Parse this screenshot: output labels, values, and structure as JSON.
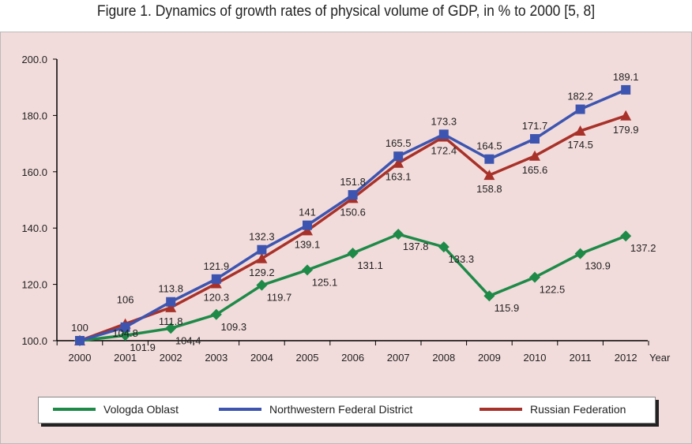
{
  "chart_data": {
    "type": "line",
    "title": "Figure 1. Dynamics of growth rates of physical volume of GDP, in % to 2000 [5, 8]",
    "xlabel": "Year",
    "ylabel": "",
    "x": [
      "2000",
      "2001",
      "2002",
      "2003",
      "2004",
      "2005",
      "2006",
      "2007",
      "2008",
      "2009",
      "2010",
      "2011",
      "2012"
    ],
    "ylim": [
      100,
      200
    ],
    "yticks": [
      "100.0",
      "120.0",
      "140.0",
      "160.0",
      "180.0",
      "200.0"
    ],
    "grid": false,
    "legend_position": "bottom",
    "series": [
      {
        "name": "Vologda Oblast",
        "color": "#1e8a48",
        "marker": "diamond",
        "values": [
          100,
          101.9,
          104.4,
          109.3,
          119.7,
          125.1,
          131.1,
          137.8,
          133.3,
          115.9,
          122.5,
          130.9,
          137.2
        ],
        "labels": [
          "",
          "101.9",
          "104.4",
          "109.3",
          "119.7",
          "125.1",
          "131.1",
          "137.8",
          "133.3",
          "115.9",
          "122.5",
          "130.9",
          "137.2"
        ]
      },
      {
        "name": "Northwestern Federal District",
        "color": "#3d55b0",
        "marker": "square",
        "values": [
          100,
          104.8,
          113.8,
          121.9,
          132.3,
          141,
          151.8,
          165.5,
          173.3,
          164.5,
          171.7,
          182.2,
          189.1
        ],
        "labels": [
          "100",
          "104.8",
          "113.8",
          "121.9",
          "132.3",
          "141",
          "151.8",
          "165.5",
          "173.3",
          "164.5",
          "171.7",
          "182.2",
          "189.1"
        ]
      },
      {
        "name": "Russian Federation",
        "color": "#a8322a",
        "marker": "triangle",
        "values": [
          100,
          106,
          111.8,
          120.3,
          129.2,
          139.1,
          150.6,
          163.1,
          172.4,
          158.8,
          165.6,
          174.5,
          179.9
        ],
        "labels": [
          "",
          "106",
          "111.8",
          "120.3",
          "129.2",
          "139.1",
          "150.6",
          "163.1",
          "172.4",
          "158.8",
          "165.6",
          "174.5",
          "179.9"
        ]
      }
    ]
  }
}
